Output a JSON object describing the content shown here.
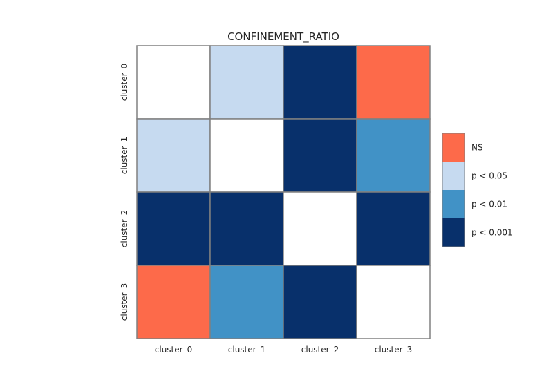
{
  "chart_data": {
    "type": "heatmap",
    "title": "CONFINEMENT_RATIO",
    "xlabel": "",
    "ylabel": "",
    "x_categories": [
      "cluster_0",
      "cluster_1",
      "cluster_2",
      "cluster_3"
    ],
    "y_categories": [
      "cluster_0",
      "cluster_1",
      "cluster_2",
      "cluster_3"
    ],
    "matrix": [
      [
        "diag",
        "p < 0.05",
        "p < 0.001",
        "NS"
      ],
      [
        "p < 0.05",
        "diag",
        "p < 0.001",
        "p < 0.01"
      ],
      [
        "p < 0.001",
        "p < 0.001",
        "diag",
        "p < 0.001"
      ],
      [
        "NS",
        "p < 0.01",
        "p < 0.001",
        "diag"
      ]
    ],
    "legend": {
      "placement": "right",
      "entries": [
        {
          "label": "NS",
          "color": "#fd6a4a"
        },
        {
          "label": "p < 0.05",
          "color": "#c6daf0"
        },
        {
          "label": "p < 0.01",
          "color": "#4192c6"
        },
        {
          "label": "p < 0.001",
          "color": "#08306b"
        }
      ]
    },
    "colors": {
      "diag": "#ffffff",
      "grid": "#808080"
    },
    "grid": false
  }
}
